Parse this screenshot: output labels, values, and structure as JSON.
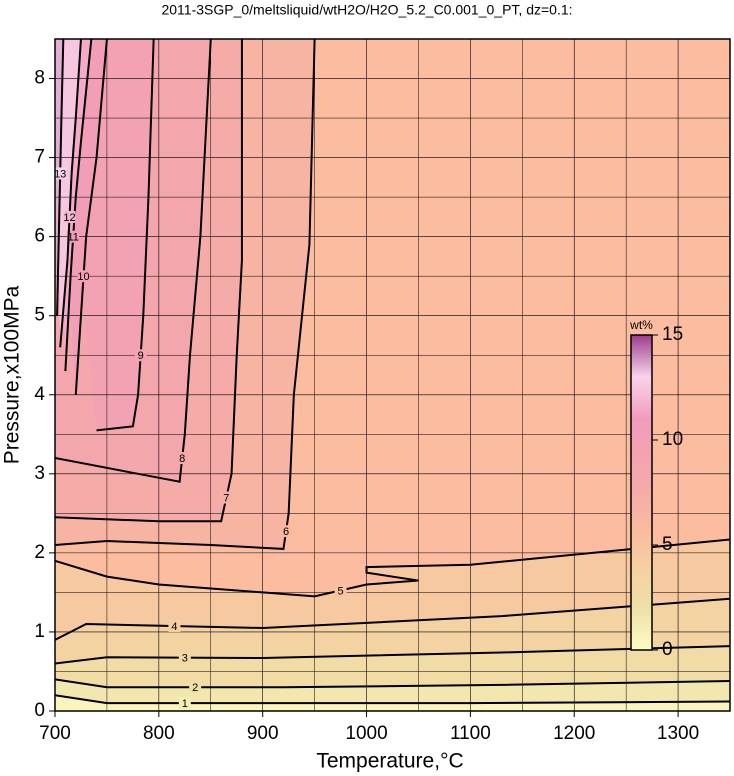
{
  "chart_data": {
    "type": "contour",
    "title": "2011-3SGP_0/meltsliquid/wtH2O/H2O_5.2_C0.001_0_PT, dz=0.1:",
    "x_label": "Temperature,°C",
    "y_label": "Pressure,x100MPa",
    "xlim": [
      700,
      1350
    ],
    "ylim": [
      0,
      8.5
    ],
    "xticks": [
      700,
      800,
      900,
      1000,
      1100,
      1200,
      1300
    ],
    "yticks": [
      0,
      1,
      2,
      3,
      4,
      5,
      6,
      7,
      8
    ],
    "xminorticks": [
      750,
      850,
      950,
      1050,
      1150,
      1250
    ],
    "yminorticks": [
      0.5,
      1.5,
      2.5,
      3.5,
      4.5,
      5.5,
      6.5,
      7.5
    ],
    "grid": true,
    "colorbar": {
      "label": "wt%",
      "lim": [
        0,
        15
      ],
      "ticks": [
        0,
        5,
        10,
        15
      ]
    },
    "colormap": [
      {
        "value": 0,
        "color": "#fcfcc4"
      },
      {
        "value": 2,
        "color": "#efe0a6"
      },
      {
        "value": 4,
        "color": "#f5cfa2"
      },
      {
        "value": 5.5,
        "color": "#fbbc9f"
      },
      {
        "value": 8,
        "color": "#f4a8aa"
      },
      {
        "value": 11,
        "color": "#f29cbc"
      },
      {
        "value": 13,
        "color": "#f8d4ec"
      },
      {
        "value": 15,
        "color": "#9c3c8c"
      }
    ],
    "contours": [
      {
        "level": 1,
        "x": [
          700,
          750,
          900,
          1100,
          1350
        ],
        "y": [
          0.2,
          0.1,
          0.1,
          0.1,
          0.12
        ]
      },
      {
        "level": 2,
        "x": [
          700,
          750,
          920,
          1130,
          1350
        ],
        "y": [
          0.4,
          0.3,
          0.3,
          0.33,
          0.38
        ]
      },
      {
        "level": 3,
        "x": [
          700,
          750,
          900,
          1130,
          1350
        ],
        "y": [
          0.6,
          0.68,
          0.67,
          0.74,
          0.82
        ]
      },
      {
        "level": 4,
        "x": [
          700,
          730,
          900,
          1130,
          1350
        ],
        "y": [
          0.9,
          1.1,
          1.05,
          1.2,
          1.42
        ]
      },
      {
        "level": 5,
        "x": [
          700,
          750,
          800,
          900,
          950,
          1000,
          1050,
          1000,
          1000,
          1100,
          1350
        ],
        "y": [
          1.9,
          1.7,
          1.6,
          1.5,
          1.45,
          1.6,
          1.65,
          1.75,
          1.82,
          1.85,
          2.17
        ]
      },
      {
        "level": 6,
        "x": [
          700,
          750,
          850,
          920,
          925,
          930,
          945,
          950
        ],
        "y": [
          2.1,
          2.15,
          2.1,
          2.05,
          2.5,
          4.0,
          5.9,
          8.5
        ]
      },
      {
        "level": 7,
        "x": [
          700,
          800,
          860,
          870,
          875,
          880,
          880
        ],
        "y": [
          2.45,
          2.4,
          2.4,
          3.0,
          4.5,
          5.7,
          8.5
        ]
      },
      {
        "level": 8,
        "x": [
          700,
          780,
          820,
          825,
          830,
          840,
          850
        ],
        "y": [
          3.2,
          3.0,
          2.9,
          3.5,
          4.5,
          6.0,
          8.5
        ]
      },
      {
        "level": 9,
        "x": [
          740,
          775,
          780,
          785,
          790,
          795
        ],
        "y": [
          3.55,
          3.6,
          4.0,
          5.0,
          6.5,
          8.5
        ]
      },
      {
        "level": 10,
        "x": [
          720,
          725,
          730,
          740,
          750
        ],
        "y": [
          4.0,
          5.0,
          6.0,
          7.0,
          8.5
        ]
      },
      {
        "level": 11,
        "x": [
          710,
          715,
          720,
          725,
          735
        ],
        "y": [
          4.3,
          5.5,
          6.5,
          7.2,
          8.5
        ]
      },
      {
        "level": 12,
        "x": [
          705,
          712,
          716,
          720,
          725
        ],
        "y": [
          4.6,
          5.7,
          6.8,
          7.5,
          8.5
        ]
      },
      {
        "level": 13,
        "x": [
          702,
          704,
          706,
          708
        ],
        "y": [
          5.0,
          6.2,
          7.4,
          8.5
        ]
      }
    ]
  }
}
